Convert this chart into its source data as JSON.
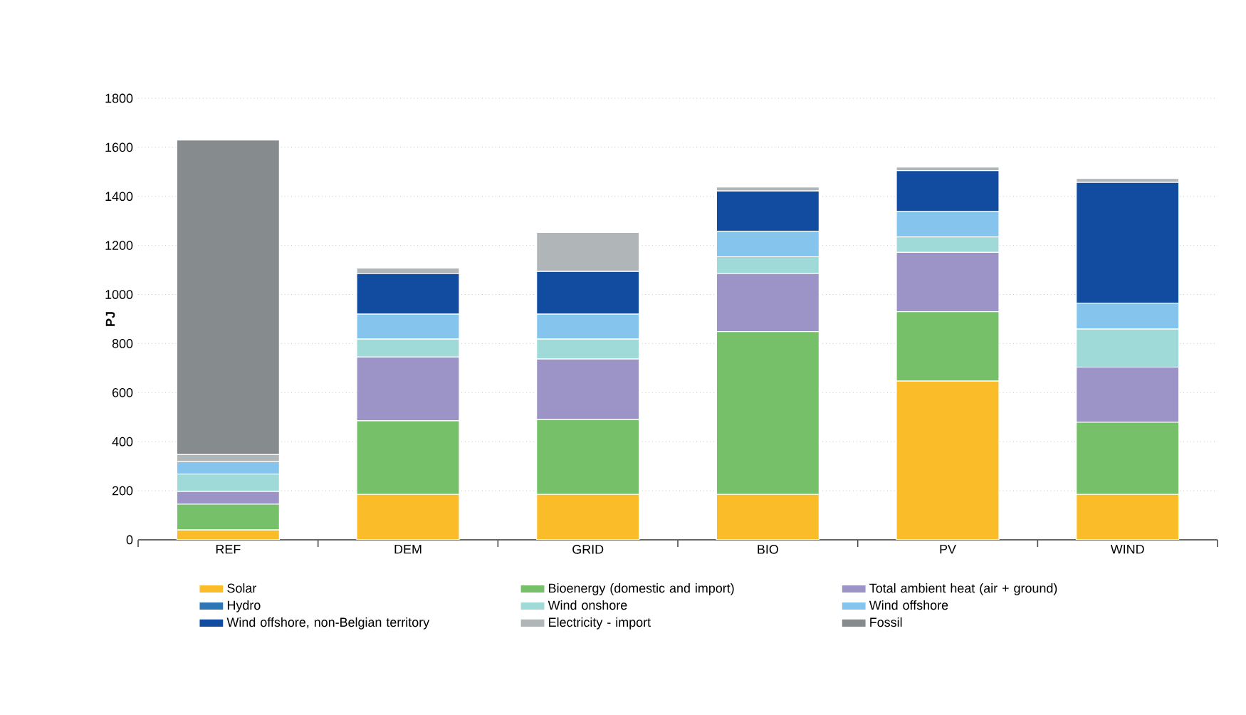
{
  "chart_data": {
    "type": "bar",
    "stacked": true,
    "ylabel": "PJ",
    "categories": [
      "REF",
      "DEM",
      "GRID",
      "BIO",
      "PV",
      "WIND"
    ],
    "series": [
      {
        "name": "Solar",
        "color": "#fbbc2a",
        "values": [
          40,
          185,
          185,
          185,
          647,
          185
        ]
      },
      {
        "name": "Bioenergy (domestic and import)",
        "color": "#77c06a",
        "values": [
          105,
          300,
          305,
          664,
          283,
          294
        ]
      },
      {
        "name": "Total ambient heat (air + ground)",
        "color": "#9c93c6",
        "values": [
          52,
          260,
          247,
          236,
          242,
          225
        ]
      },
      {
        "name": "Hydro",
        "color": "#2e75b6",
        "values": [
          0,
          0,
          0,
          0,
          0,
          0
        ]
      },
      {
        "name": "Wind onshore",
        "color": "#a0dad8",
        "values": [
          71,
          73,
          81,
          69,
          63,
          155
        ]
      },
      {
        "name": "Wind offshore",
        "color": "#85c4ec",
        "values": [
          50,
          102,
          102,
          104,
          103,
          106
        ]
      },
      {
        "name": "Wind offshore, non-Belgian territory",
        "color": "#114ca0",
        "values": [
          0,
          165,
          174,
          164,
          167,
          492
        ]
      },
      {
        "name": "Electricity - import",
        "color": "#b0b5b7",
        "values": [
          29,
          23,
          159,
          16,
          14,
          16
        ]
      },
      {
        "name": "Fossil",
        "color": "#868c8d",
        "values": [
          1283,
          0,
          0,
          0,
          0,
          0
        ]
      }
    ],
    "ylim": [
      0,
      1800
    ],
    "yticks": [
      0,
      200,
      400,
      600,
      800,
      1000,
      1200,
      1400,
      1600,
      1800
    ],
    "grid": "y",
    "legend": "bottom"
  }
}
